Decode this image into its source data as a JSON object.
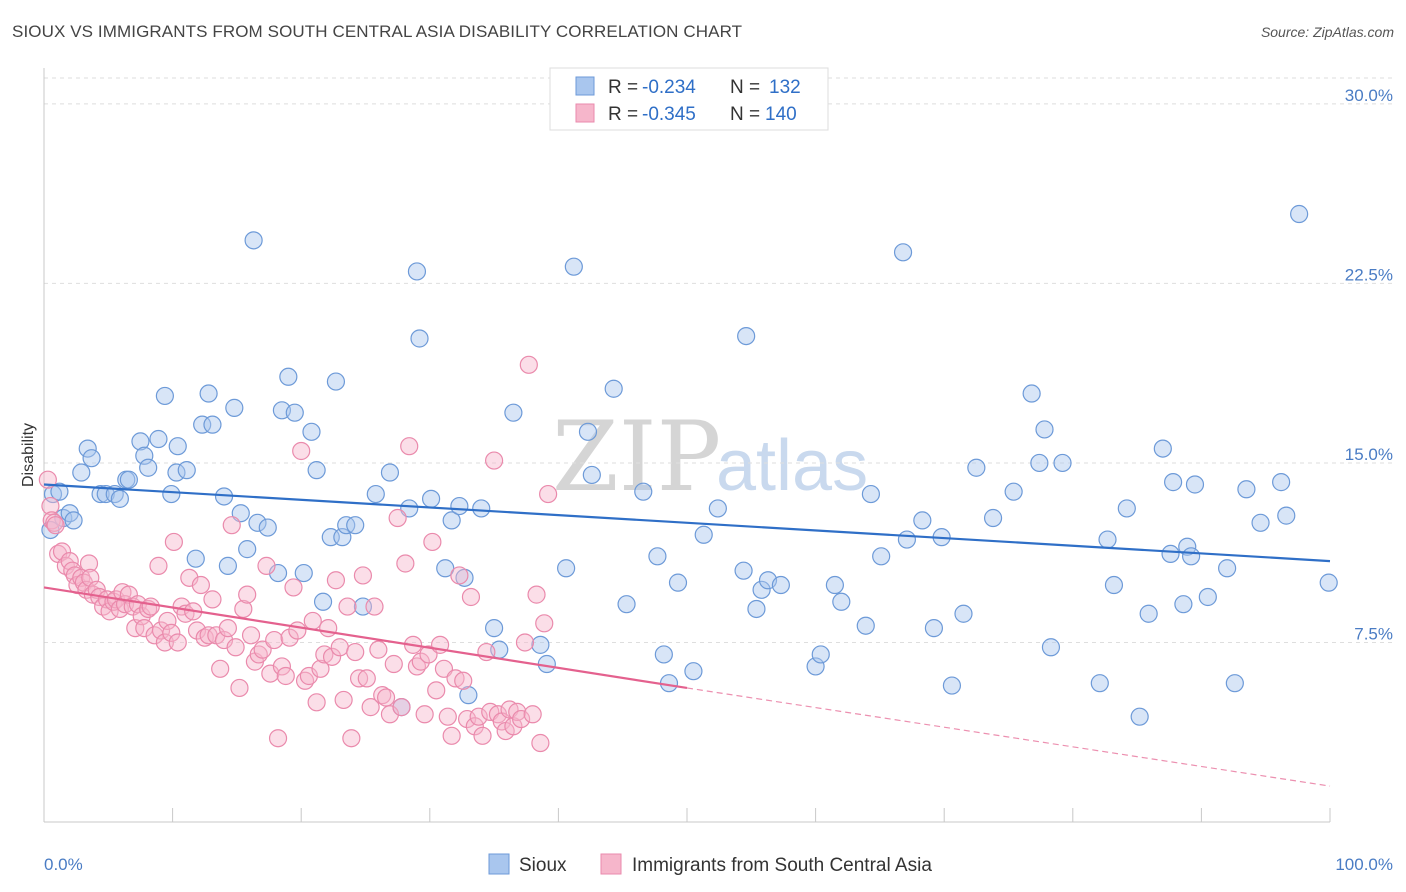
{
  "header": {
    "title": "SIOUX VS IMMIGRANTS FROM SOUTH CENTRAL ASIA DISABILITY CORRELATION CHART",
    "source": "Source: ZipAtlas.com"
  },
  "watermark": {
    "zip": "ZIP",
    "atlas": "atlas"
  },
  "legend": {
    "r_label": "R =",
    "n_label": "N =",
    "rows": [
      {
        "r": "-0.234",
        "n": "132",
        "color": "#5b8fd6"
      },
      {
        "r": "-0.345",
        "n": "140",
        "color": "#ee8fb0"
      }
    ]
  },
  "colors": {
    "sioux_fill": "#a9c6ee",
    "sioux_stroke": "#6d9ad8",
    "sioux_line": "#2f6fc7",
    "imm_fill": "#f6b6cb",
    "imm_stroke": "#ea8aac",
    "imm_line": "#e4618e"
  },
  "chart_data": {
    "type": "scatter",
    "title": "SIOUX VS IMMIGRANTS FROM SOUTH CENTRAL ASIA DISABILITY CORRELATION CHART",
    "xlabel": "",
    "ylabel": "Disability",
    "xlim": [
      0,
      100
    ],
    "ylim": [
      0,
      31.5
    ],
    "y_ticks": [
      {
        "value": 7.5,
        "label": "7.5%"
      },
      {
        "value": 15.0,
        "label": "15.0%"
      },
      {
        "value": 22.5,
        "label": "22.5%"
      },
      {
        "value": 30.0,
        "label": "30.0%"
      }
    ],
    "x_tick_labels": [
      {
        "value": 0,
        "label": "0.0%"
      },
      {
        "value": 100,
        "label": "100.0%"
      }
    ],
    "grid": "horizontal dashed",
    "legend_position": "top-center",
    "series": [
      {
        "name": "Sioux",
        "r": -0.234,
        "n": 132,
        "trend": {
          "x": [
            0,
            100
          ],
          "y": [
            14.1,
            10.9
          ]
        },
        "points": [
          [
            0.5,
            12.2
          ],
          [
            0.7,
            13.7
          ],
          [
            1.2,
            13.8
          ],
          [
            1.5,
            12.7
          ],
          [
            2.0,
            12.9
          ],
          [
            2.3,
            12.6
          ],
          [
            2.9,
            14.6
          ],
          [
            3.4,
            15.6
          ],
          [
            3.7,
            15.2
          ],
          [
            4.4,
            13.7
          ],
          [
            4.8,
            13.7
          ],
          [
            5.5,
            13.7
          ],
          [
            5.9,
            13.5
          ],
          [
            6.4,
            14.3
          ],
          [
            6.6,
            14.3
          ],
          [
            7.5,
            15.9
          ],
          [
            7.8,
            15.3
          ],
          [
            8.1,
            14.8
          ],
          [
            8.9,
            16.0
          ],
          [
            9.4,
            17.8
          ],
          [
            9.9,
            13.7
          ],
          [
            10.3,
            14.6
          ],
          [
            10.4,
            15.7
          ],
          [
            11.1,
            14.7
          ],
          [
            11.8,
            11.0
          ],
          [
            12.3,
            16.6
          ],
          [
            12.8,
            17.9
          ],
          [
            13.1,
            16.6
          ],
          [
            14.0,
            13.6
          ],
          [
            14.3,
            10.7
          ],
          [
            14.8,
            17.3
          ],
          [
            15.3,
            12.9
          ],
          [
            15.8,
            11.4
          ],
          [
            16.3,
            24.3
          ],
          [
            16.6,
            12.5
          ],
          [
            17.4,
            12.3
          ],
          [
            18.2,
            10.4
          ],
          [
            18.5,
            17.2
          ],
          [
            19.0,
            18.6
          ],
          [
            19.5,
            17.1
          ],
          [
            20.2,
            10.4
          ],
          [
            20.8,
            16.3
          ],
          [
            21.2,
            14.7
          ],
          [
            21.7,
            9.2
          ],
          [
            22.3,
            11.9
          ],
          [
            22.7,
            18.4
          ],
          [
            23.2,
            11.9
          ],
          [
            23.5,
            12.4
          ],
          [
            24.2,
            12.4
          ],
          [
            24.8,
            9.0
          ],
          [
            25.8,
            13.7
          ],
          [
            26.9,
            14.6
          ],
          [
            27.8,
            4.8
          ],
          [
            28.4,
            13.1
          ],
          [
            29.0,
            23.0
          ],
          [
            29.2,
            20.2
          ],
          [
            30.1,
            13.5
          ],
          [
            31.2,
            10.6
          ],
          [
            31.7,
            12.6
          ],
          [
            32.3,
            13.2
          ],
          [
            32.7,
            10.2
          ],
          [
            33.0,
            5.3
          ],
          [
            34.0,
            13.1
          ],
          [
            35.0,
            8.1
          ],
          [
            35.4,
            7.2
          ],
          [
            36.5,
            17.1
          ],
          [
            38.6,
            7.4
          ],
          [
            39.1,
            6.6
          ],
          [
            40.6,
            10.6
          ],
          [
            41.2,
            23.2
          ],
          [
            42.3,
            16.3
          ],
          [
            42.6,
            14.5
          ],
          [
            44.3,
            18.1
          ],
          [
            45.3,
            9.1
          ],
          [
            46.6,
            13.8
          ],
          [
            47.7,
            11.1
          ],
          [
            48.2,
            7.0
          ],
          [
            48.6,
            5.8
          ],
          [
            49.3,
            10.0
          ],
          [
            50.5,
            6.3
          ],
          [
            51.3,
            12.0
          ],
          [
            52.4,
            13.1
          ],
          [
            54.4,
            10.5
          ],
          [
            54.6,
            20.3
          ],
          [
            55.4,
            8.9
          ],
          [
            55.8,
            9.7
          ],
          [
            56.3,
            10.1
          ],
          [
            57.3,
            9.9
          ],
          [
            60.0,
            6.5
          ],
          [
            60.4,
            7.0
          ],
          [
            61.5,
            9.9
          ],
          [
            62.0,
            9.2
          ],
          [
            63.9,
            8.2
          ],
          [
            64.3,
            13.7
          ],
          [
            65.1,
            11.1
          ],
          [
            66.8,
            23.8
          ],
          [
            67.1,
            11.8
          ],
          [
            68.3,
            12.6
          ],
          [
            69.2,
            8.1
          ],
          [
            69.8,
            11.9
          ],
          [
            70.6,
            5.7
          ],
          [
            71.5,
            8.7
          ],
          [
            72.5,
            14.8
          ],
          [
            73.8,
            12.7
          ],
          [
            75.4,
            13.8
          ],
          [
            76.8,
            17.9
          ],
          [
            77.4,
            15.0
          ],
          [
            77.8,
            16.4
          ],
          [
            78.3,
            7.3
          ],
          [
            79.2,
            15.0
          ],
          [
            82.1,
            5.8
          ],
          [
            82.7,
            11.8
          ],
          [
            83.2,
            9.9
          ],
          [
            84.2,
            13.1
          ],
          [
            85.2,
            4.4
          ],
          [
            85.9,
            8.7
          ],
          [
            87.0,
            15.6
          ],
          [
            87.6,
            11.2
          ],
          [
            87.8,
            14.2
          ],
          [
            88.6,
            9.1
          ],
          [
            88.9,
            11.5
          ],
          [
            89.2,
            11.1
          ],
          [
            89.5,
            14.1
          ],
          [
            90.5,
            9.4
          ],
          [
            92.0,
            10.6
          ],
          [
            92.6,
            5.8
          ],
          [
            93.5,
            13.9
          ],
          [
            94.6,
            12.5
          ],
          [
            96.2,
            14.2
          ],
          [
            96.6,
            12.8
          ],
          [
            97.6,
            25.4
          ],
          [
            99.9,
            10.0
          ]
        ]
      },
      {
        "name": "Immigrants from South Central Asia",
        "r": -0.345,
        "n": 140,
        "trend": {
          "x": [
            0,
            50
          ],
          "y": [
            9.8,
            5.6
          ]
        },
        "trend_extension": {
          "x": [
            50,
            100
          ],
          "y": [
            5.6,
            1.5
          ]
        },
        "points": [
          [
            0.3,
            14.3
          ],
          [
            0.5,
            13.2
          ],
          [
            0.6,
            12.6
          ],
          [
            0.8,
            12.5
          ],
          [
            0.9,
            12.4
          ],
          [
            1.1,
            11.2
          ],
          [
            1.4,
            11.3
          ],
          [
            1.7,
            10.7
          ],
          [
            2.0,
            10.9
          ],
          [
            2.2,
            10.5
          ],
          [
            2.4,
            10.3
          ],
          [
            2.6,
            9.9
          ],
          [
            2.9,
            10.2
          ],
          [
            3.1,
            10.0
          ],
          [
            3.3,
            9.7
          ],
          [
            3.5,
            10.8
          ],
          [
            3.6,
            10.2
          ],
          [
            3.8,
            9.5
          ],
          [
            4.1,
            9.7
          ],
          [
            4.3,
            9.4
          ],
          [
            4.6,
            9.0
          ],
          [
            4.9,
            9.3
          ],
          [
            5.1,
            8.8
          ],
          [
            5.4,
            9.2
          ],
          [
            5.6,
            9.3
          ],
          [
            5.9,
            8.9
          ],
          [
            6.1,
            9.6
          ],
          [
            6.3,
            9.1
          ],
          [
            6.6,
            9.5
          ],
          [
            6.9,
            9.0
          ],
          [
            7.1,
            8.1
          ],
          [
            7.3,
            9.1
          ],
          [
            7.6,
            8.6
          ],
          [
            7.8,
            8.1
          ],
          [
            8.1,
            8.9
          ],
          [
            8.3,
            9.0
          ],
          [
            8.6,
            7.8
          ],
          [
            8.9,
            10.7
          ],
          [
            9.1,
            8.0
          ],
          [
            9.4,
            7.5
          ],
          [
            9.6,
            8.4
          ],
          [
            9.9,
            7.9
          ],
          [
            10.1,
            11.7
          ],
          [
            10.4,
            7.5
          ],
          [
            10.7,
            9.0
          ],
          [
            11.0,
            8.7
          ],
          [
            11.3,
            10.2
          ],
          [
            11.6,
            8.8
          ],
          [
            11.9,
            8.0
          ],
          [
            12.2,
            9.9
          ],
          [
            12.5,
            7.7
          ],
          [
            12.8,
            7.8
          ],
          [
            13.1,
            9.3
          ],
          [
            13.4,
            7.8
          ],
          [
            13.7,
            6.4
          ],
          [
            14.0,
            7.6
          ],
          [
            14.3,
            8.1
          ],
          [
            14.6,
            12.4
          ],
          [
            14.9,
            7.3
          ],
          [
            15.2,
            5.6
          ],
          [
            15.5,
            8.9
          ],
          [
            15.8,
            9.5
          ],
          [
            16.1,
            7.8
          ],
          [
            16.4,
            6.7
          ],
          [
            16.7,
            7.0
          ],
          [
            17.0,
            7.2
          ],
          [
            17.3,
            10.7
          ],
          [
            17.6,
            6.2
          ],
          [
            17.9,
            7.6
          ],
          [
            18.2,
            3.5
          ],
          [
            18.5,
            6.5
          ],
          [
            18.8,
            6.1
          ],
          [
            19.1,
            7.7
          ],
          [
            19.4,
            9.8
          ],
          [
            19.7,
            8.0
          ],
          [
            20.0,
            15.5
          ],
          [
            20.3,
            5.9
          ],
          [
            20.6,
            6.1
          ],
          [
            20.9,
            8.4
          ],
          [
            21.2,
            5.0
          ],
          [
            21.5,
            6.4
          ],
          [
            21.8,
            7.0
          ],
          [
            22.1,
            8.1
          ],
          [
            22.4,
            6.9
          ],
          [
            22.7,
            10.1
          ],
          [
            23.0,
            7.3
          ],
          [
            23.3,
            5.1
          ],
          [
            23.6,
            9.0
          ],
          [
            23.9,
            3.5
          ],
          [
            24.2,
            7.1
          ],
          [
            24.5,
            6.0
          ],
          [
            24.8,
            10.3
          ],
          [
            25.1,
            6.0
          ],
          [
            25.4,
            4.8
          ],
          [
            25.7,
            9.0
          ],
          [
            26.0,
            7.2
          ],
          [
            26.3,
            5.3
          ],
          [
            26.6,
            5.2
          ],
          [
            26.9,
            4.5
          ],
          [
            27.2,
            6.6
          ],
          [
            27.5,
            12.7
          ],
          [
            27.8,
            4.8
          ],
          [
            28.1,
            10.8
          ],
          [
            28.4,
            15.7
          ],
          [
            28.7,
            7.4
          ],
          [
            29.0,
            6.5
          ],
          [
            29.3,
            6.7
          ],
          [
            29.6,
            4.5
          ],
          [
            29.9,
            7.0
          ],
          [
            30.2,
            11.7
          ],
          [
            30.5,
            5.5
          ],
          [
            30.8,
            7.4
          ],
          [
            31.1,
            6.4
          ],
          [
            31.4,
            4.4
          ],
          [
            31.7,
            3.6
          ],
          [
            32.0,
            6.0
          ],
          [
            32.3,
            10.3
          ],
          [
            32.6,
            5.9
          ],
          [
            32.9,
            4.3
          ],
          [
            33.2,
            9.4
          ],
          [
            33.5,
            4.0
          ],
          [
            33.8,
            4.4
          ],
          [
            34.1,
            3.6
          ],
          [
            34.4,
            7.1
          ],
          [
            34.7,
            4.6
          ],
          [
            35.0,
            15.1
          ],
          [
            35.3,
            4.5
          ],
          [
            35.6,
            4.2
          ],
          [
            35.9,
            3.8
          ],
          [
            36.2,
            4.7
          ],
          [
            36.5,
            4.0
          ],
          [
            36.8,
            4.6
          ],
          [
            37.1,
            4.3
          ],
          [
            37.4,
            7.5
          ],
          [
            37.7,
            19.1
          ],
          [
            38.0,
            4.5
          ],
          [
            38.3,
            9.5
          ],
          [
            38.6,
            3.3
          ],
          [
            38.9,
            8.3
          ],
          [
            39.2,
            13.7
          ]
        ]
      }
    ]
  },
  "bottom_legend": [
    {
      "label": "Sioux"
    },
    {
      "label": "Immigrants from South Central Asia"
    }
  ]
}
